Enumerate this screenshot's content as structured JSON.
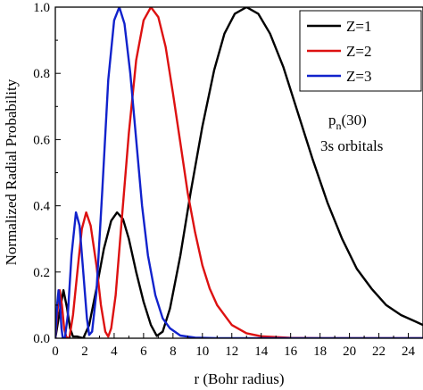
{
  "chart_data": {
    "type": "line",
    "title": "",
    "xlabel": "r (Bohr radius)",
    "ylabel": "Normalized Radial Probability",
    "xlim": [
      0,
      25
    ],
    "ylim": [
      0,
      1.0
    ],
    "x_ticks": [
      0,
      2,
      4,
      6,
      8,
      10,
      12,
      14,
      16,
      18,
      20,
      22,
      24
    ],
    "x_tick_labels": [
      "0",
      "2",
      "4",
      "6",
      "8",
      "10",
      "12",
      "14",
      "16",
      "18",
      "20",
      "22",
      "24"
    ],
    "y_ticks": [
      0,
      0.2,
      0.4,
      0.6,
      0.8,
      1.0
    ],
    "y_tick_labels": [
      "0.0",
      "0.2",
      "0.4",
      "0.6",
      "0.8",
      "1.0"
    ],
    "grid": false,
    "legend_position": "top-right",
    "annotation": {
      "main": "p",
      "subscript": "n",
      "paren": "(30)",
      "line2": "3s orbitals"
    },
    "series": [
      {
        "name": "Z=1",
        "color": "#000000",
        "points": [
          [
            0,
            0
          ],
          [
            0.3,
            0.08
          ],
          [
            0.55,
            0.145
          ],
          [
            0.8,
            0.09
          ],
          [
            1.0,
            0.03
          ],
          [
            1.2,
            0.005
          ],
          [
            1.5,
            0.005
          ],
          [
            1.9,
            0.0
          ],
          [
            2.3,
            0.04
          ],
          [
            2.8,
            0.15
          ],
          [
            3.3,
            0.27
          ],
          [
            3.8,
            0.355
          ],
          [
            4.2,
            0.38
          ],
          [
            4.6,
            0.36
          ],
          [
            5.0,
            0.3
          ],
          [
            5.5,
            0.2
          ],
          [
            6.0,
            0.11
          ],
          [
            6.5,
            0.04
          ],
          [
            6.9,
            0.007
          ],
          [
            7.3,
            0.02
          ],
          [
            7.8,
            0.09
          ],
          [
            8.5,
            0.25
          ],
          [
            9.2,
            0.44
          ],
          [
            10.0,
            0.64
          ],
          [
            10.8,
            0.81
          ],
          [
            11.5,
            0.92
          ],
          [
            12.2,
            0.98
          ],
          [
            13.0,
            1.0
          ],
          [
            13.8,
            0.98
          ],
          [
            14.6,
            0.92
          ],
          [
            15.5,
            0.82
          ],
          [
            16.5,
            0.68
          ],
          [
            17.5,
            0.54
          ],
          [
            18.5,
            0.41
          ],
          [
            19.5,
            0.3
          ],
          [
            20.5,
            0.21
          ],
          [
            21.5,
            0.15
          ],
          [
            22.5,
            0.1
          ],
          [
            23.5,
            0.07
          ],
          [
            24.5,
            0.05
          ],
          [
            25,
            0.04
          ]
        ]
      },
      {
        "name": "Z=2",
        "color": "#dd1111",
        "points": [
          [
            0,
            0
          ],
          [
            0.18,
            0.1
          ],
          [
            0.3,
            0.145
          ],
          [
            0.45,
            0.1
          ],
          [
            0.6,
            0.03
          ],
          [
            0.75,
            0.003
          ],
          [
            0.95,
            0.0
          ],
          [
            1.2,
            0.07
          ],
          [
            1.5,
            0.2
          ],
          [
            1.8,
            0.33
          ],
          [
            2.1,
            0.38
          ],
          [
            2.4,
            0.34
          ],
          [
            2.8,
            0.22
          ],
          [
            3.1,
            0.1
          ],
          [
            3.4,
            0.02
          ],
          [
            3.6,
            0.005
          ],
          [
            3.8,
            0.03
          ],
          [
            4.1,
            0.13
          ],
          [
            4.5,
            0.35
          ],
          [
            5.0,
            0.62
          ],
          [
            5.5,
            0.84
          ],
          [
            6.0,
            0.96
          ],
          [
            6.5,
            1.0
          ],
          [
            7.0,
            0.97
          ],
          [
            7.5,
            0.88
          ],
          [
            8.0,
            0.74
          ],
          [
            8.5,
            0.59
          ],
          [
            9.0,
            0.44
          ],
          [
            9.5,
            0.32
          ],
          [
            10.0,
            0.22
          ],
          [
            10.5,
            0.15
          ],
          [
            11.0,
            0.1
          ],
          [
            12.0,
            0.04
          ],
          [
            13.0,
            0.015
          ],
          [
            14.0,
            0.006
          ],
          [
            16.0,
            0.001
          ],
          [
            18.0,
            0.0
          ],
          [
            25,
            0.0
          ]
        ]
      },
      {
        "name": "Z=3",
        "color": "#1122cc",
        "points": [
          [
            0,
            0
          ],
          [
            0.12,
            0.1
          ],
          [
            0.22,
            0.145
          ],
          [
            0.32,
            0.1
          ],
          [
            0.42,
            0.03
          ],
          [
            0.5,
            0.003
          ],
          [
            0.65,
            0.0
          ],
          [
            0.85,
            0.07
          ],
          [
            1.1,
            0.25
          ],
          [
            1.4,
            0.38
          ],
          [
            1.65,
            0.34
          ],
          [
            1.9,
            0.2
          ],
          [
            2.15,
            0.06
          ],
          [
            2.3,
            0.01
          ],
          [
            2.5,
            0.02
          ],
          [
            2.8,
            0.14
          ],
          [
            3.2,
            0.45
          ],
          [
            3.6,
            0.78
          ],
          [
            4.0,
            0.96
          ],
          [
            4.35,
            1.0
          ],
          [
            4.7,
            0.95
          ],
          [
            5.1,
            0.8
          ],
          [
            5.5,
            0.6
          ],
          [
            5.9,
            0.4
          ],
          [
            6.3,
            0.25
          ],
          [
            6.8,
            0.13
          ],
          [
            7.3,
            0.06
          ],
          [
            7.8,
            0.03
          ],
          [
            8.5,
            0.008
          ],
          [
            9.5,
            0.002
          ],
          [
            11.0,
            0.0
          ],
          [
            25,
            0.0
          ]
        ]
      }
    ]
  }
}
